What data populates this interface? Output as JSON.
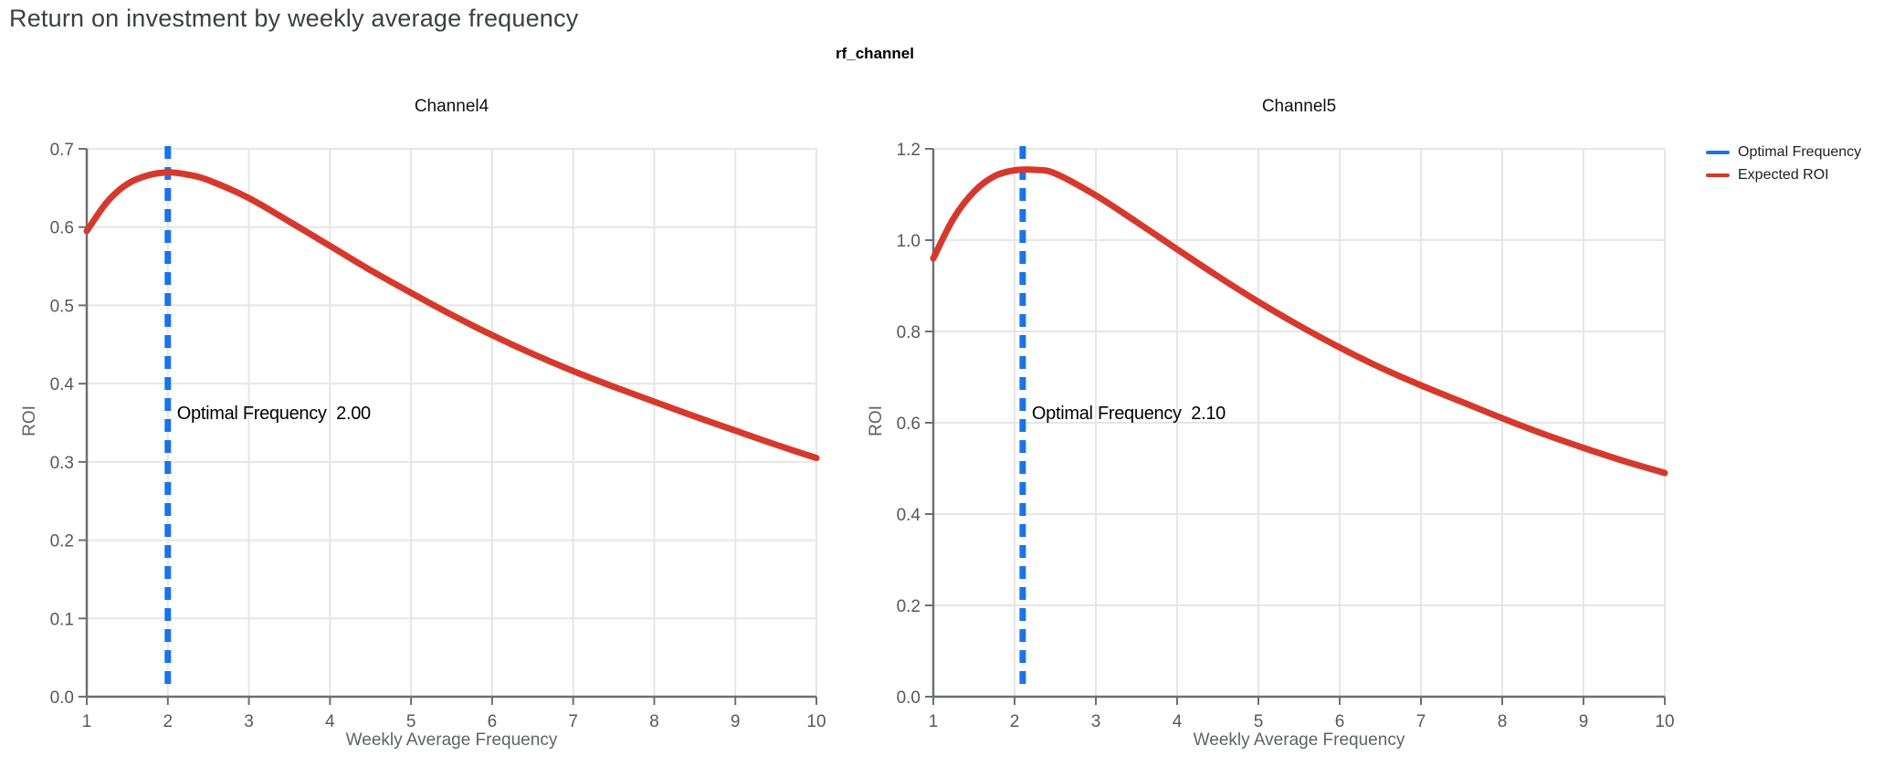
{
  "page": {
    "title": "Return on investment by weekly average frequency"
  },
  "figure": {
    "facet_label": "rf_channel",
    "legend": [
      {
        "label": "Optimal Frequency",
        "color": "#1a73e8"
      },
      {
        "label": "Expected ROI",
        "color": "#d6392b"
      }
    ]
  },
  "colors": {
    "optimal_frequency_blue": "#1a73e8",
    "expected_roi_red": "#d6392b",
    "gridline": "#e6e6e6",
    "axis_line": "#6c7075",
    "tick_label": "#55595d",
    "axis_title": "#5f6368",
    "page_title": "#3c4043"
  },
  "chart_data": [
    {
      "type": "line",
      "title": "Channel4",
      "xlabel": "Weekly Average Frequency",
      "ylabel": "ROI",
      "xlim": [
        1,
        10
      ],
      "ylim": [
        0,
        0.7
      ],
      "grid": true,
      "x_ticks": [
        1,
        2,
        3,
        4,
        5,
        6,
        7,
        8,
        9,
        10
      ],
      "y_ticks": [
        0.0,
        0.1,
        0.2,
        0.3,
        0.4,
        0.5,
        0.6,
        0.7
      ],
      "y_tick_labels": [
        "0.0",
        "0.1",
        "0.2",
        "0.3",
        "0.4",
        "0.5",
        "0.6",
        "0.7"
      ],
      "optimal_frequency": {
        "value": 2.0,
        "label": "Optimal Frequency  2.00",
        "color": "#1a73e8"
      },
      "series": [
        {
          "name": "Expected ROI",
          "color": "#d6392b",
          "x": [
            1,
            1.25,
            1.5,
            1.75,
            2,
            2.25,
            2.5,
            3,
            3.5,
            4,
            4.5,
            5,
            5.5,
            6,
            6.5,
            7,
            7.5,
            8,
            8.5,
            9,
            9.5,
            10
          ],
          "y": [
            0.595,
            0.632,
            0.655,
            0.666,
            0.67,
            0.667,
            0.66,
            0.637,
            0.607,
            0.576,
            0.545,
            0.516,
            0.488,
            0.462,
            0.438,
            0.416,
            0.396,
            0.377,
            0.358,
            0.34,
            0.322,
            0.305
          ]
        }
      ]
    },
    {
      "type": "line",
      "title": "Channel5",
      "xlabel": "Weekly Average Frequency",
      "ylabel": "ROI",
      "xlim": [
        1,
        10
      ],
      "ylim": [
        0,
        1.2
      ],
      "grid": true,
      "x_ticks": [
        1,
        2,
        3,
        4,
        5,
        6,
        7,
        8,
        9,
        10
      ],
      "y_ticks": [
        0.0,
        0.2,
        0.4,
        0.6,
        0.8,
        1.0,
        1.2
      ],
      "y_tick_labels": [
        "0.0",
        "0.2",
        "0.4",
        "0.6",
        "0.8",
        "1.0",
        "1.2"
      ],
      "optimal_frequency": {
        "value": 2.1,
        "label": "Optimal Frequency  2.10",
        "color": "#1a73e8"
      },
      "series": [
        {
          "name": "Expected ROI",
          "color": "#d6392b",
          "x": [
            1,
            1.25,
            1.5,
            1.75,
            2,
            2.25,
            2.5,
            3,
            3.5,
            4,
            4.5,
            5,
            5.5,
            6,
            6.5,
            7,
            7.5,
            8,
            8.5,
            9,
            9.5,
            10
          ],
          "y": [
            0.96,
            1.048,
            1.106,
            1.14,
            1.153,
            1.154,
            1.146,
            1.098,
            1.04,
            0.98,
            0.921,
            0.865,
            0.813,
            0.765,
            0.721,
            0.682,
            0.646,
            0.61,
            0.576,
            0.545,
            0.516,
            0.49
          ]
        }
      ]
    }
  ]
}
